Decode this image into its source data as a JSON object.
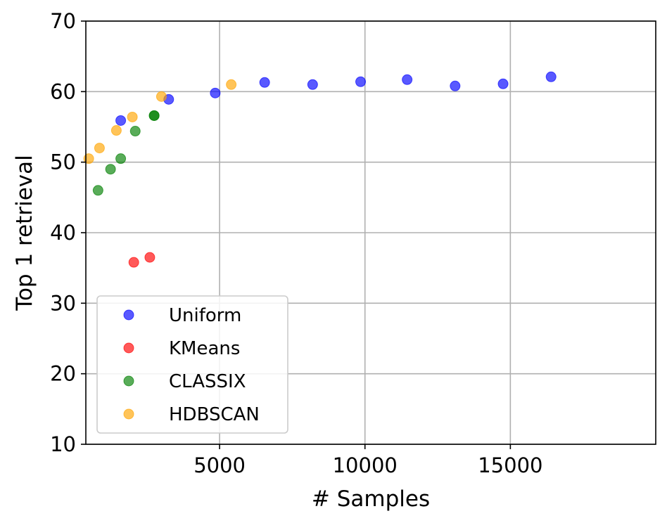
{
  "chart_data": {
    "type": "scatter",
    "title": "",
    "xlabel": "# Samples",
    "ylabel": "Top 1 retrieval",
    "xlim": [
      400,
      20000
    ],
    "ylim": [
      10,
      70
    ],
    "xticks": [
      5000,
      10000,
      15000
    ],
    "xtick_labels": [
      "5000",
      "10000",
      "15000"
    ],
    "yticks": [
      10,
      20,
      30,
      40,
      50,
      60,
      70
    ],
    "ytick_labels": [
      "10",
      "20",
      "30",
      "40",
      "50",
      "60",
      "70"
    ],
    "grid": true,
    "legend_position": "lower-left",
    "series": [
      {
        "name": "Uniform",
        "color": "#0000ff",
        "points": [
          {
            "x": 1600,
            "y": 55.9
          },
          {
            "x": 3250,
            "y": 58.9
          },
          {
            "x": 4850,
            "y": 59.8
          },
          {
            "x": 6550,
            "y": 61.3
          },
          {
            "x": 8200,
            "y": 61.0
          },
          {
            "x": 9850,
            "y": 61.4
          },
          {
            "x": 11450,
            "y": 61.7
          },
          {
            "x": 13100,
            "y": 60.8
          },
          {
            "x": 14750,
            "y": 61.1
          },
          {
            "x": 16400,
            "y": 62.1
          }
        ]
      },
      {
        "name": "KMeans",
        "color": "#ff0000",
        "points": [
          {
            "x": 2050,
            "y": 35.8
          },
          {
            "x": 2600,
            "y": 36.5
          }
        ]
      },
      {
        "name": "CLASSIX",
        "color": "#008000",
        "points": [
          {
            "x": 820,
            "y": 46.0
          },
          {
            "x": 1250,
            "y": 49.0
          },
          {
            "x": 1600,
            "y": 50.5
          },
          {
            "x": 2100,
            "y": 54.4
          },
          {
            "x": 2750,
            "y": 56.6
          },
          {
            "x": 2750,
            "y": 56.6
          }
        ]
      },
      {
        "name": "HDBSCAN",
        "color": "#ffa500",
        "points": [
          {
            "x": 500,
            "y": 50.5
          },
          {
            "x": 870,
            "y": 52.0
          },
          {
            "x": 1450,
            "y": 54.5
          },
          {
            "x": 2000,
            "y": 56.4
          },
          {
            "x": 3000,
            "y": 59.3
          },
          {
            "x": 5400,
            "y": 61.0
          }
        ]
      }
    ]
  }
}
